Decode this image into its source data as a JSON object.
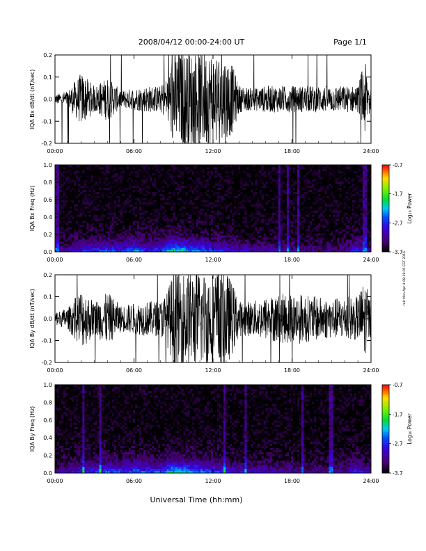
{
  "header": {
    "title": "2008/04/12  00:00-24:00 UT",
    "page": "Page 1/1"
  },
  "footer": {
    "xlabel": "Universal Time (hh:mm)"
  },
  "side_note": "mit Mon Apr 4 08:18:05 EST 2016",
  "chart_data": [
    {
      "type": "line",
      "title": "",
      "ylabel": "IQA Bx dB/dt (nT/sec)",
      "xlabel": "",
      "xlim": [
        "00:00",
        "24:00"
      ],
      "ylim": [
        -0.2,
        0.2
      ],
      "xticks": [
        "00:00",
        "06:00",
        "12:00",
        "18:00",
        "24:00"
      ],
      "yticks": [
        "-0.2",
        "-0.1",
        "0.0",
        "0.1",
        "0.2"
      ],
      "series": [
        {
          "x_hours": [
            0,
            1,
            2,
            3,
            4,
            5,
            6,
            7,
            8,
            8.5,
            9,
            10,
            11,
            12,
            13,
            13.5,
            14,
            15,
            16,
            17,
            18,
            19,
            20,
            21,
            22,
            23,
            23.5,
            24
          ],
          "amplitude": [
            0.02,
            0.04,
            0.12,
            0.06,
            0.1,
            0.04,
            0.05,
            0.06,
            0.06,
            0.1,
            0.22,
            0.22,
            0.22,
            0.22,
            0.2,
            0.15,
            0.06,
            0.05,
            0.06,
            0.06,
            0.06,
            0.06,
            0.06,
            0.06,
            0.06,
            0.06,
            0.18,
            0.06
          ]
        }
      ]
    },
    {
      "type": "heatmap",
      "title": "",
      "ylabel": "IQA Bx Freq (Hz)",
      "xlabel": "",
      "xlim": [
        "00:00",
        "24:00"
      ],
      "ylim": [
        0.0,
        1.0
      ],
      "xticks": [
        "00:00",
        "06:00",
        "12:00",
        "18:00",
        "24:00"
      ],
      "yticks": [
        "0.0",
        "0.2",
        "0.4",
        "0.6",
        "0.8",
        "1.0"
      ],
      "colorbar": {
        "label": "Log₁₀ Power",
        "range": [
          -3.7,
          -0.7
        ],
        "ticks": [
          "-0.7",
          "-1.7",
          "-2.7",
          "-3.7"
        ]
      },
      "activity_hours": [
        0,
        1,
        2,
        3,
        4,
        5,
        6,
        7,
        8,
        9,
        10,
        11,
        12,
        13,
        14,
        15,
        16,
        17,
        18,
        19,
        20,
        21,
        22,
        23,
        24
      ],
      "log_power_low_freq": [
        -3.2,
        -3.0,
        -2.7,
        -2.6,
        -2.4,
        -2.6,
        -2.2,
        -2.6,
        -2.5,
        -1.8,
        -2.1,
        -2.3,
        -2.5,
        -2.7,
        -2.9,
        -3.0,
        -3.0,
        -3.1,
        -3.1,
        -3.2,
        -3.2,
        -3.2,
        -3.2,
        -2.6,
        -3.2
      ]
    },
    {
      "type": "line",
      "title": "",
      "ylabel": "IQA By dB/dt (nT/sec)",
      "xlabel": "",
      "xlim": [
        "00:00",
        "24:00"
      ],
      "ylim": [
        -0.2,
        0.2
      ],
      "xticks": [
        "00:00",
        "06:00",
        "12:00",
        "18:00",
        "24:00"
      ],
      "yticks": [
        "-0.2",
        "-0.1",
        "0.0",
        "0.1",
        "0.2"
      ],
      "series": [
        {
          "x_hours": [
            0,
            1,
            2,
            3,
            4,
            5,
            6,
            7,
            8,
            8.5,
            9,
            10,
            11,
            12,
            13,
            13.5,
            14,
            15,
            16,
            17,
            18,
            19,
            20,
            21,
            22,
            23,
            23.5,
            24
          ],
          "amplitude": [
            0.03,
            0.05,
            0.14,
            0.08,
            0.12,
            0.06,
            0.07,
            0.08,
            0.08,
            0.12,
            0.22,
            0.22,
            0.22,
            0.22,
            0.22,
            0.16,
            0.08,
            0.08,
            0.1,
            0.11,
            0.12,
            0.11,
            0.1,
            0.09,
            0.1,
            0.1,
            0.18,
            0.08
          ]
        }
      ]
    },
    {
      "type": "heatmap",
      "title": "",
      "ylabel": "IQA By Freq (Hz)",
      "xlabel": "",
      "xlim": [
        "00:00",
        "24:00"
      ],
      "ylim": [
        0.0,
        1.0
      ],
      "xticks": [
        "00:00",
        "06:00",
        "12:00",
        "18:00",
        "24:00"
      ],
      "yticks": [
        "0.0",
        "0.2",
        "0.4",
        "0.6",
        "0.8",
        "1.0"
      ],
      "colorbar": {
        "label": "Log₁₀ Power",
        "range": [
          -3.7,
          -0.7
        ],
        "ticks": [
          "-0.7",
          "-1.7",
          "-2.7",
          "-3.7"
        ]
      },
      "activity_hours": [
        0,
        1,
        2,
        3,
        4,
        5,
        6,
        7,
        8,
        9,
        10,
        11,
        12,
        13,
        14,
        15,
        16,
        17,
        18,
        19,
        20,
        21,
        22,
        23,
        24
      ],
      "log_power_low_freq": [
        -3.1,
        -2.9,
        -2.6,
        -2.5,
        -2.3,
        -2.5,
        -2.1,
        -2.5,
        -2.4,
        -1.7,
        -2.0,
        -2.2,
        -2.4,
        -2.6,
        -2.8,
        -2.9,
        -2.9,
        -3.0,
        -3.0,
        -3.1,
        -3.1,
        -3.1,
        -3.1,
        -2.5,
        -3.1
      ]
    }
  ]
}
